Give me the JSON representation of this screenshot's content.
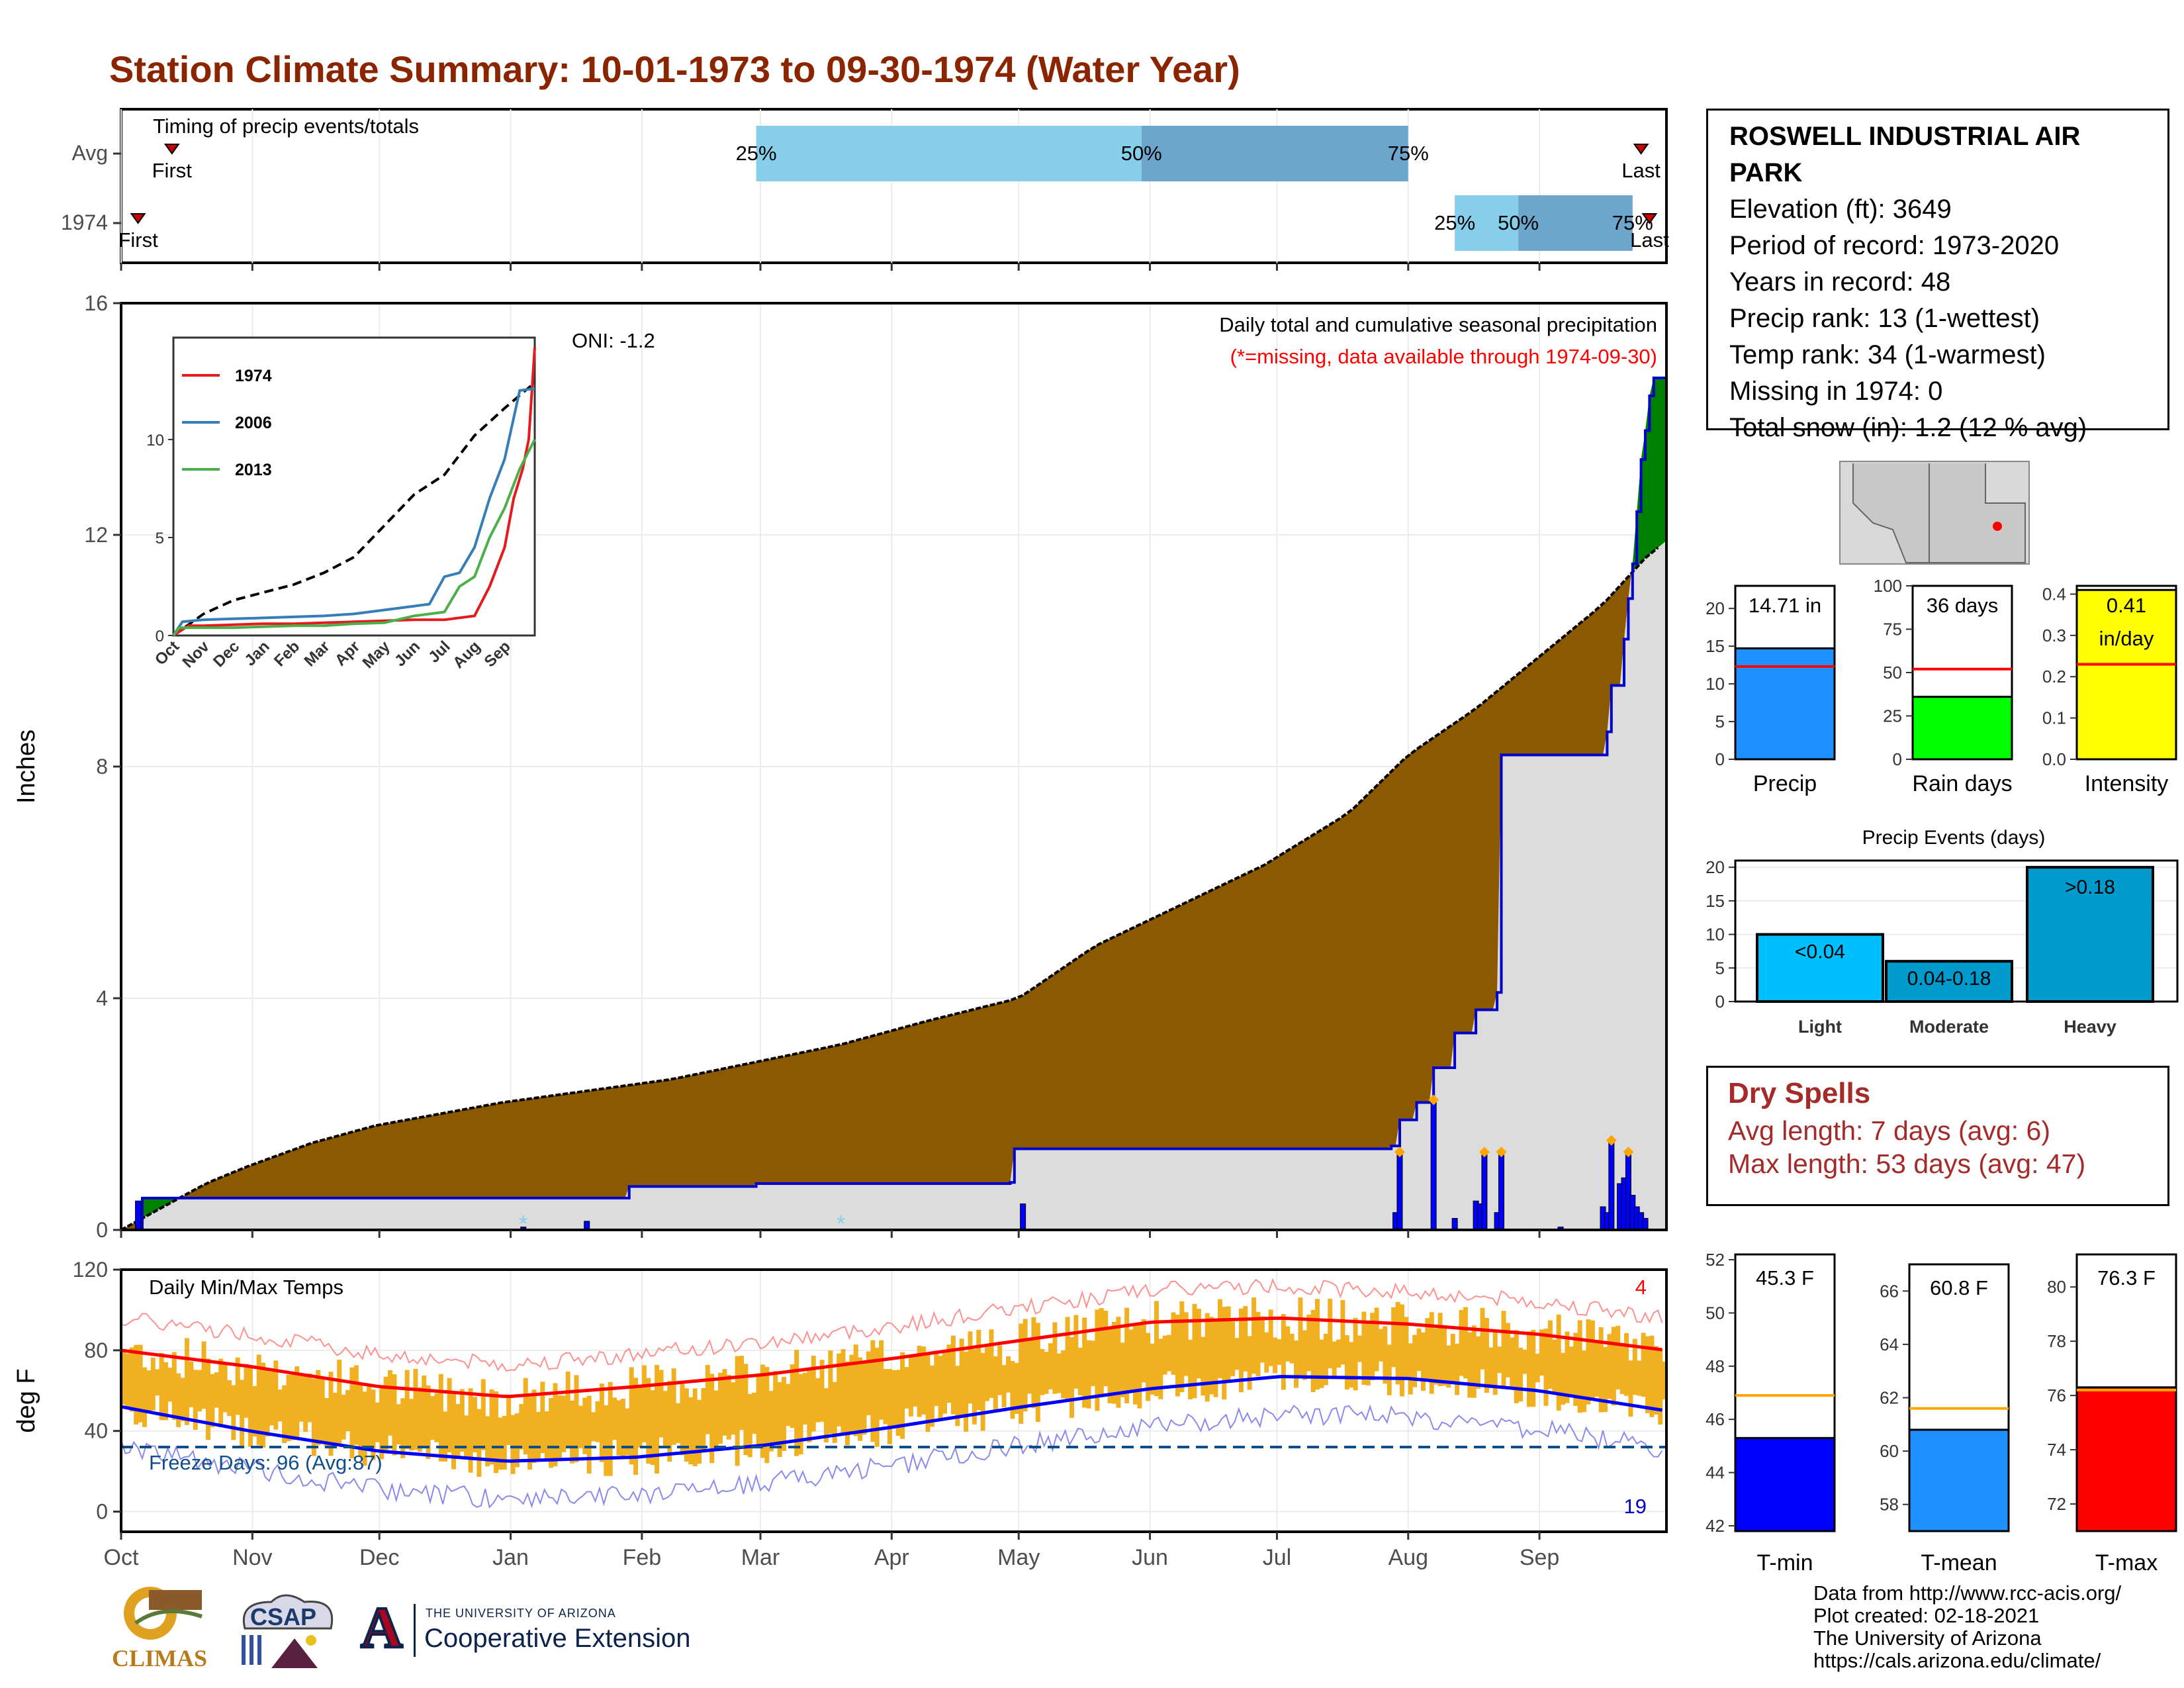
{
  "title": "Station Climate Summary: 10-01-1973 to 09-30-1974 (Water Year)",
  "station": {
    "name": "ROSWELL INDUSTRIAL AIR PARK",
    "lines": [
      "Elevation (ft): 3649",
      "Period of record: 1973-2020",
      "Years in record: 48",
      "Precip rank: 13 (1-wettest)",
      "Temp rank: 34 (1-warmest)",
      "Missing in 1974: 0",
      "Total snow (in): 1.2 (12 % avg)"
    ]
  },
  "dry_spells": {
    "heading": "Dry Spells",
    "avg_length": "Avg length: 7 days (avg: 6)",
    "max_length": "Max length: 53 days (avg: 47)"
  },
  "footer": [
    "Data from http://www.rcc-acis.org/",
    "Plot created: 02-18-2021",
    "The University of Arizona",
    "https://cals.arizona.edu/climate/"
  ],
  "logos": {
    "climas": "CLIMAS",
    "csap": "CSAP",
    "ua_small": "THE UNIVERSITY OF ARIZONA",
    "ua_big": "Cooperative Extension",
    "ua_letter": "A"
  },
  "colors": {
    "title": "#8b2500",
    "cumulative_fill": "#8b5a00",
    "above_avg_fill": "#008000",
    "bars": "#0000ff",
    "temp_bars": "#f0b020",
    "tmax_line": "#ff0000",
    "tmin_line": "#0000ff",
    "quartile_light": "#87ceeb",
    "quartile_dark": "#6ca6cd"
  },
  "chart_data": [
    {
      "type": "timeline",
      "title": "Timing of precip events/totals",
      "rows": [
        {
          "label": "Avg",
          "first_label": "First",
          "last_label": "Last",
          "first": "10-13",
          "last": "09-25",
          "quartiles": [
            {
              "label": "25%",
              "date": "02-28"
            },
            {
              "label": "50%",
              "date": "05-30"
            },
            {
              "label": "75%",
              "date": "08-01"
            }
          ]
        },
        {
          "label": "1974",
          "first_label": "First",
          "last_label": "Last",
          "first": "10-05",
          "last": "09-27",
          "quartiles": [
            {
              "label": "25%",
              "date": "08-12"
            },
            {
              "label": "50%",
              "date": "08-27"
            },
            {
              "label": "75%",
              "date": "09-23"
            }
          ]
        }
      ]
    },
    {
      "type": "area",
      "title": "Daily total and cumulative seasonal precipitation",
      "subtitle": "(*=missing, data available through 1974-09-30)",
      "ylabel": "Inches",
      "ylim": [
        0,
        16
      ],
      "yticks": [
        0,
        4,
        8,
        12,
        16
      ],
      "oni": "ONI: -1.2",
      "month_labels": [
        "Oct",
        "Nov",
        "Dec",
        "Jan",
        "Feb",
        "Mar",
        "Apr",
        "May",
        "Jun",
        "Jul",
        "Aug",
        "Sep"
      ],
      "avg_cumulative": {
        "day": [
          0,
          10,
          20,
          30,
          45,
          60,
          75,
          90,
          110,
          130,
          150,
          170,
          190,
          212,
          230,
          250,
          270,
          290,
          304,
          320,
          340,
          350,
          360,
          365
        ],
        "inches": [
          0,
          0.4,
          0.8,
          1.1,
          1.5,
          1.8,
          2.0,
          2.2,
          2.4,
          2.6,
          2.9,
          3.2,
          3.6,
          4.0,
          4.9,
          5.6,
          6.3,
          7.2,
          8.2,
          9.0,
          10.2,
          10.8,
          11.6,
          11.9
        ]
      },
      "cumulative_1974": {
        "day": [
          0,
          4,
          5,
          95,
          120,
          150,
          190,
          210,
          211,
          300,
          302,
          306,
          310,
          315,
          320,
          325,
          326,
          340,
          350,
          351,
          352,
          355,
          356,
          357,
          358,
          359,
          360,
          361,
          362,
          365
        ],
        "inches": [
          0,
          0,
          0.55,
          0.55,
          0.75,
          0.8,
          0.8,
          0.82,
          1.4,
          1.45,
          1.9,
          2.2,
          2.8,
          3.4,
          3.8,
          4.1,
          8.2,
          8.2,
          8.2,
          8.6,
          9.4,
          10.2,
          10.9,
          11.5,
          12.4,
          13.3,
          13.8,
          14.4,
          14.71,
          14.71
        ]
      },
      "daily_bars": {
        "day": [
          4,
          95,
          110,
          213,
          301,
          302,
          310,
          315,
          320,
          321,
          322,
          325,
          326,
          340,
          350,
          351,
          352,
          354,
          355,
          356,
          357,
          358,
          359,
          360
        ],
        "inches": [
          0.5,
          0.05,
          0.15,
          0.45,
          0.3,
          1.3,
          2.2,
          0.2,
          0.5,
          0.45,
          1.3,
          0.3,
          1.3,
          0.05,
          0.4,
          0.3,
          1.5,
          0.8,
          0.9,
          1.3,
          0.6,
          0.4,
          0.3,
          0.2
        ]
      },
      "missing_marks": {
        "day": [
          95,
          170
        ]
      },
      "inset": {
        "type": "line",
        "series": [
          {
            "name": "1974",
            "color": "#e41a1c",
            "x": [
              0,
              0.5,
              1,
              2,
              3,
              4,
              5,
              6,
              7,
              8,
              9,
              10,
              10.5,
              11,
              11.3,
              11.6,
              11.8,
              12
            ],
            "y": [
              0,
              0.5,
              0.5,
              0.55,
              0.6,
              0.6,
              0.65,
              0.7,
              0.75,
              0.8,
              0.8,
              1.0,
              2.5,
              4.5,
              7,
              8.5,
              10,
              14.7
            ]
          },
          {
            "name": "2006",
            "color": "#377eb8",
            "x": [
              0,
              0.3,
              1,
              2,
              3,
              4,
              5,
              6,
              7,
              8,
              8.5,
              9,
              9.5,
              10,
              10.5,
              11,
              11.5,
              12
            ],
            "y": [
              0,
              0.7,
              0.8,
              0.85,
              0.9,
              0.95,
              1.0,
              1.1,
              1.3,
              1.5,
              1.6,
              3.0,
              3.2,
              4.5,
              7,
              9,
              12.5,
              12.6
            ]
          },
          {
            "name": "2013",
            "color": "#4daf4a",
            "x": [
              0,
              0.2,
              1,
              2,
              3,
              4,
              5,
              6,
              7,
              8,
              9,
              9.5,
              10,
              10.5,
              11,
              11.5,
              12
            ],
            "y": [
              0,
              0.4,
              0.4,
              0.4,
              0.45,
              0.5,
              0.5,
              0.6,
              0.65,
              1.0,
              1.2,
              2.5,
              3.0,
              5,
              6.5,
              8.5,
              10
            ]
          }
        ],
        "avg": {
          "x": [
            0,
            1,
            2,
            3,
            4,
            5,
            6,
            7,
            8,
            9,
            10,
            11,
            12
          ],
          "y": [
            0,
            1.1,
            1.8,
            2.2,
            2.6,
            3.2,
            4.0,
            5.6,
            7.2,
            8.2,
            10.2,
            11.6,
            12.9
          ]
        },
        "yticks": [
          0,
          5,
          10
        ],
        "month_labels": [
          "Oct",
          "Nov",
          "Dec",
          "Jan",
          "Feb",
          "Mar",
          "Apr",
          "May",
          "Jun",
          "Jul",
          "Aug",
          "Sep"
        ]
      }
    },
    {
      "type": "line",
      "title": "Daily Min/Max Temps",
      "ylabel": "deg F",
      "ylim": [
        -10,
        120
      ],
      "yticks": [
        0,
        40,
        80,
        120
      ],
      "freeze_label": "Freeze Days: 96 (Avg:87)",
      "freeze_line": 32,
      "record_high_count": "4",
      "record_low_count": "19",
      "month_labels": [
        "Oct",
        "Nov",
        "Dec",
        "Jan",
        "Feb",
        "Mar",
        "Apr",
        "May",
        "Jun",
        "Jul",
        "Aug",
        "Sep"
      ],
      "avg_tmax": {
        "month": [
          0,
          1,
          2,
          3,
          4,
          5,
          6,
          7,
          8,
          9,
          10,
          11,
          12
        ],
        "degF": [
          80,
          72,
          62,
          57,
          62,
          68,
          76,
          85,
          94,
          96,
          93,
          88,
          80
        ]
      },
      "avg_tmin": {
        "month": [
          0,
          1,
          2,
          3,
          4,
          5,
          6,
          7,
          8,
          9,
          10,
          11,
          12
        ],
        "degF": [
          52,
          40,
          30,
          25,
          27,
          33,
          42,
          52,
          61,
          67,
          66,
          60,
          50
        ]
      }
    },
    {
      "type": "bar",
      "categories": [
        "Precip",
        "Rain days",
        "Intensity"
      ],
      "values": [
        14.71,
        36,
        0.41
      ],
      "value_labels": [
        "14.71 in",
        "36 days",
        "0.41 in/day"
      ],
      "averages": [
        12.3,
        52,
        0.23
      ],
      "ylim": [
        [
          0,
          23
        ],
        [
          0,
          100
        ],
        [
          0,
          0.42
        ]
      ],
      "yticks": [
        [
          0,
          5,
          10,
          15,
          20
        ],
        [
          0,
          25,
          50,
          75,
          100
        ],
        [
          0.0,
          0.1,
          0.2,
          0.3,
          0.4
        ]
      ],
      "colors": [
        "#1e90ff",
        "#00ff00",
        "#ffff00"
      ]
    },
    {
      "type": "bar",
      "title": "Precip Events (days)",
      "categories": [
        "Light",
        "Moderate",
        "Heavy"
      ],
      "bar_labels": [
        "<0.04",
        "0.04-0.18",
        ">0.18"
      ],
      "values": [
        10,
        6,
        20
      ],
      "ylim": [
        0,
        21
      ],
      "yticks": [
        0,
        5,
        10,
        15,
        20
      ],
      "colors": [
        "#00bfff",
        "#009acd",
        "#009acd"
      ]
    },
    {
      "type": "bar",
      "categories": [
        "T-min",
        "T-mean",
        "T-max"
      ],
      "values": [
        45.3,
        60.8,
        76.3
      ],
      "value_labels": [
        "45.3 F",
        "60.8 F",
        "76.3 F"
      ],
      "averages": [
        46.9,
        61.6,
        76.2
      ],
      "ylim": [
        [
          41.8,
          52.2
        ],
        [
          57,
          67
        ],
        [
          71,
          81.2
        ]
      ],
      "yticks": [
        [
          42,
          44,
          46,
          48,
          50,
          52
        ],
        [
          58,
          60,
          62,
          64,
          66
        ],
        [
          72,
          74,
          76,
          78,
          80
        ]
      ],
      "colors": [
        "#0000ff",
        "#1e90ff",
        "#ff0000"
      ]
    }
  ]
}
